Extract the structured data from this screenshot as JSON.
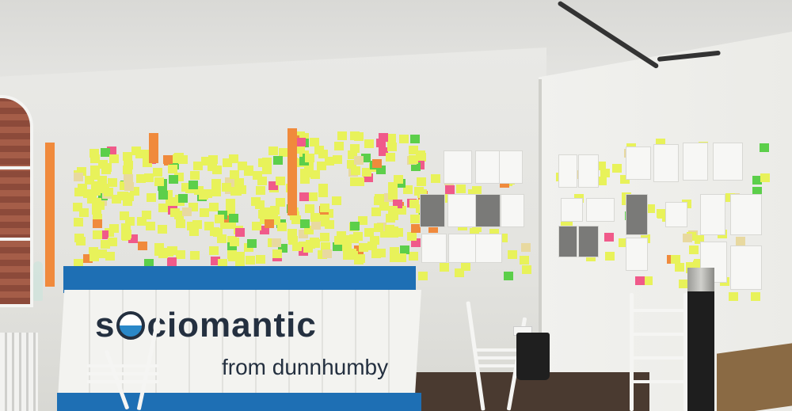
{
  "scene": {
    "description_free": true,
    "sign": {
      "brand_prefix": "s",
      "brand_rest": "ciomantic",
      "tagline": "from dunnhumby",
      "colors": {
        "band": "#1e6fb4",
        "text": "#243040"
      }
    },
    "note_colors": {
      "yellow": "#e8f25a",
      "orange": "#f08a3c",
      "pink": "#f05a8a",
      "green": "#5ccf4a",
      "beige": "#e8d9a0"
    }
  }
}
